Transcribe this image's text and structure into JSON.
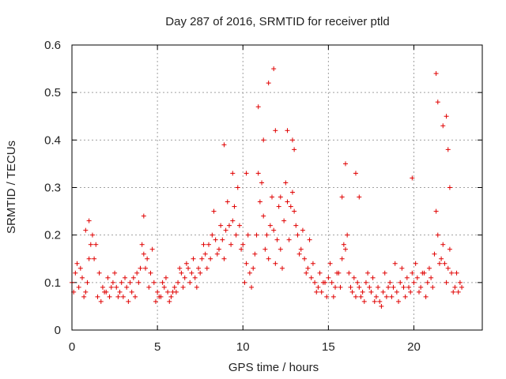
{
  "chart_data": {
    "type": "scatter",
    "title": "Day 287 of 2016, SRMTID for receiver ptld",
    "xlabel": "GPS time / hours",
    "ylabel": "SRMTID / TECUs",
    "xlim": [
      0,
      24
    ],
    "ylim": [
      0,
      0.6
    ],
    "x_ticks": [
      0,
      5,
      10,
      15,
      20
    ],
    "x_tick_labels": [
      "0",
      "5",
      "10",
      "15",
      "20"
    ],
    "y_ticks": [
      0,
      0.1,
      0.2,
      0.3,
      0.4,
      0.5,
      0.6
    ],
    "y_tick_labels": [
      "0",
      "0.1",
      "0.2",
      "0.3",
      "0.4",
      "0.5",
      "0.6"
    ],
    "grid": true,
    "series_color": "#e00000",
    "series": [
      {
        "name": "SRMTID",
        "marker": "plus",
        "x": [
          0.0,
          0.2,
          0.4,
          0.6,
          0.8,
          1.0,
          1.2,
          1.4,
          1.6,
          1.8,
          2.0,
          2.2,
          2.4,
          2.6,
          2.8,
          3.0,
          3.2,
          3.4,
          3.6,
          3.8,
          4.0,
          4.2,
          4.4,
          4.6,
          4.8,
          5.0,
          5.2,
          5.4,
          5.6,
          5.8,
          6.0,
          6.2,
          6.4,
          6.6,
          6.8,
          7.0,
          7.2,
          7.4,
          7.6,
          7.8,
          8.0,
          8.2,
          8.4,
          8.6,
          8.8,
          9.0,
          9.2,
          9.4,
          9.6,
          9.8,
          10.0,
          10.2,
          10.4,
          10.6,
          10.8,
          11.0,
          11.2,
          11.4,
          11.6,
          11.8,
          12.0,
          12.2,
          12.4,
          12.6,
          12.8,
          13.0,
          13.2,
          13.4,
          13.6,
          13.8,
          14.0,
          14.2,
          14.4,
          14.6,
          14.8,
          15.0,
          15.2,
          15.4,
          15.6,
          15.8,
          16.0,
          16.2,
          16.4,
          16.6,
          16.8,
          17.0,
          17.2,
          17.4,
          17.6,
          17.8,
          18.0,
          18.2,
          18.4,
          18.6,
          18.8,
          19.0,
          19.2,
          19.4,
          19.6,
          19.8,
          20.0,
          20.2,
          20.4,
          20.6,
          20.8,
          21.0,
          21.2,
          21.4,
          21.6,
          21.8,
          22.0,
          22.2,
          22.4,
          22.6,
          22.8,
          0.1,
          0.3,
          0.5,
          0.7,
          0.9,
          1.1,
          1.3,
          1.5,
          1.7,
          1.9,
          2.1,
          2.3,
          2.5,
          2.7,
          2.9,
          3.1,
          3.3,
          3.5,
          3.7,
          3.9,
          4.1,
          4.3,
          4.5,
          4.7,
          4.9,
          5.1,
          5.3,
          5.5,
          5.7,
          5.9,
          6.1,
          6.3,
          6.5,
          6.7,
          6.9,
          7.1,
          7.3,
          7.5,
          7.7,
          7.9,
          8.1,
          8.3,
          8.5,
          8.7,
          8.9,
          9.1,
          9.3,
          9.5,
          9.7,
          9.9,
          10.1,
          10.3,
          10.5,
          10.7,
          10.9,
          11.1,
          11.3,
          11.5,
          11.7,
          11.9,
          12.1,
          12.3,
          12.5,
          12.7,
          12.9,
          13.1,
          13.3,
          13.5,
          13.7,
          13.9,
          14.1,
          14.3,
          14.5,
          14.7,
          14.9,
          15.1,
          15.3,
          15.5,
          15.7,
          15.9,
          16.1,
          16.3,
          16.5,
          16.7,
          16.9,
          17.1,
          17.3,
          17.5,
          17.7,
          17.9,
          18.1,
          18.3,
          18.5,
          18.7,
          18.9,
          19.1,
          19.3,
          19.5,
          19.7,
          19.9,
          20.1,
          20.3,
          20.5,
          20.7,
          20.9,
          21.1,
          21.3,
          21.5,
          21.7,
          21.9,
          22.1,
          22.3,
          22.5,
          22.7,
          8.9,
          10.9,
          11.2,
          11.5,
          11.8,
          11.9,
          12.6,
          12.9,
          13.0,
          16.0,
          16.6,
          19.9,
          21.3,
          21.4,
          21.7,
          21.9,
          22.0,
          22.1,
          4.2,
          1.0,
          0.8,
          9.4,
          10.2,
          15.8,
          16.8,
          12.2
        ],
        "y": [
          0.1,
          0.12,
          0.09,
          0.11,
          0.08,
          0.15,
          0.2,
          0.18,
          0.12,
          0.09,
          0.08,
          0.07,
          0.1,
          0.09,
          0.08,
          0.07,
          0.09,
          0.1,
          0.11,
          0.12,
          0.13,
          0.16,
          0.15,
          0.12,
          0.1,
          0.08,
          0.07,
          0.09,
          0.08,
          0.07,
          0.09,
          0.1,
          0.12,
          0.11,
          0.13,
          0.12,
          0.11,
          0.13,
          0.15,
          0.16,
          0.18,
          0.2,
          0.19,
          0.17,
          0.19,
          0.21,
          0.22,
          0.23,
          0.2,
          0.22,
          0.18,
          0.14,
          0.12,
          0.13,
          0.2,
          0.27,
          0.24,
          0.2,
          0.22,
          0.21,
          0.19,
          0.17,
          0.23,
          0.27,
          0.26,
          0.25,
          0.2,
          0.17,
          0.15,
          0.13,
          0.11,
          0.1,
          0.09,
          0.08,
          0.1,
          0.11,
          0.1,
          0.09,
          0.12,
          0.15,
          0.17,
          0.12,
          0.08,
          0.07,
          0.09,
          0.08,
          0.1,
          0.09,
          0.11,
          0.07,
          0.06,
          0.08,
          0.07,
          0.1,
          0.09,
          0.08,
          0.1,
          0.09,
          0.11,
          0.08,
          0.1,
          0.11,
          0.09,
          0.12,
          0.1,
          0.11,
          0.16,
          0.2,
          0.15,
          0.14,
          0.13,
          0.12,
          0.09,
          0.08,
          0.09,
          0.08,
          0.14,
          0.13,
          0.07,
          0.1,
          0.18,
          0.15,
          0.07,
          0.06,
          0.08,
          0.11,
          0.09,
          0.12,
          0.07,
          0.1,
          0.11,
          0.06,
          0.08,
          0.07,
          0.1,
          0.18,
          0.13,
          0.09,
          0.17,
          0.06,
          0.07,
          0.1,
          0.11,
          0.06,
          0.08,
          0.08,
          0.13,
          0.09,
          0.14,
          0.1,
          0.15,
          0.09,
          0.12,
          0.18,
          0.13,
          0.15,
          0.25,
          0.16,
          0.22,
          0.15,
          0.27,
          0.18,
          0.26,
          0.3,
          0.17,
          0.1,
          0.2,
          0.09,
          0.16,
          0.33,
          0.31,
          0.17,
          0.15,
          0.28,
          0.14,
          0.26,
          0.13,
          0.31,
          0.19,
          0.29,
          0.22,
          0.16,
          0.21,
          0.12,
          0.19,
          0.14,
          0.08,
          0.12,
          0.1,
          0.07,
          0.14,
          0.07,
          0.12,
          0.09,
          0.18,
          0.2,
          0.09,
          0.11,
          0.1,
          0.07,
          0.06,
          0.12,
          0.08,
          0.06,
          0.09,
          0.05,
          0.12,
          0.09,
          0.07,
          0.14,
          0.06,
          0.13,
          0.07,
          0.09,
          0.12,
          0.14,
          0.08,
          0.12,
          0.07,
          0.13,
          0.09,
          0.25,
          0.14,
          0.18,
          0.1,
          0.17,
          0.08,
          0.12,
          0.1,
          0.39,
          0.47,
          0.4,
          0.52,
          0.55,
          0.42,
          0.42,
          0.4,
          0.38,
          0.35,
          0.33,
          0.32,
          0.54,
          0.48,
          0.43,
          0.45,
          0.38,
          0.3,
          0.24,
          0.23,
          0.21,
          0.33,
          0.33,
          0.28,
          0.28,
          0.28
        ]
      }
    ]
  }
}
